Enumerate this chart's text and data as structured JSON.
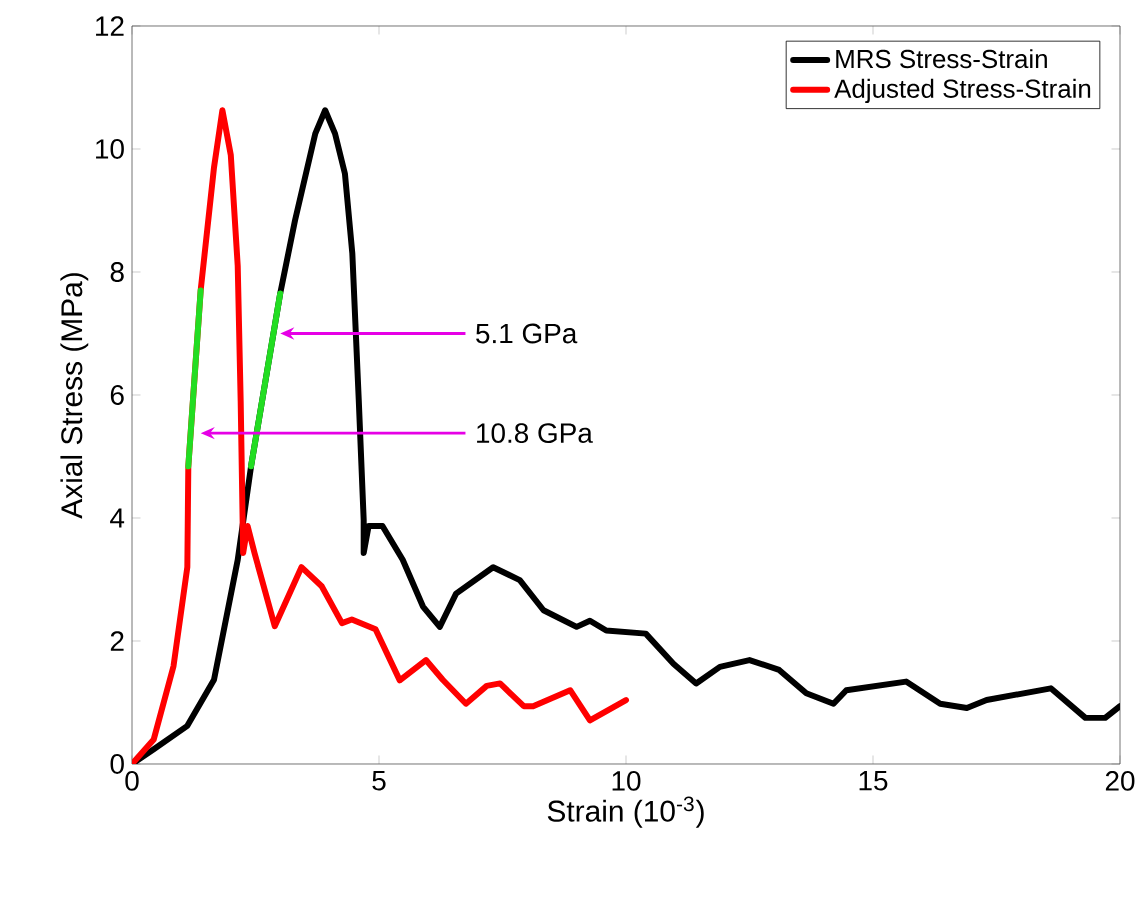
{
  "chart_data": {
    "type": "line",
    "xlabel": "Strain (10$^{-3}$)",
    "ylabel": "Axial Stress (MPa)",
    "xlim": [
      0,
      20
    ],
    "ylim": [
      0,
      12
    ],
    "xticks": [
      0,
      5,
      10,
      15,
      20
    ],
    "yticks": [
      0,
      2,
      4,
      6,
      8,
      10,
      12
    ],
    "grid": false,
    "legend": "top right",
    "line_style": "solid",
    "marker": "none",
    "series": [
      {
        "name": "MRS Stress-Strain",
        "color": "#000000",
        "x": [
          0,
          0.44,
          1.12,
          1.66,
          2.14,
          2.41,
          3.0,
          3.3,
          3.71,
          3.91,
          4.11,
          4.31,
          4.46,
          4.59,
          4.69,
          4.69,
          4.79,
          5.07,
          5.48,
          5.89,
          6.23,
          6.56,
          7.31,
          7.85,
          8.33,
          9.0,
          9.27,
          9.6,
          10.4,
          10.96,
          11.42,
          11.9,
          12.5,
          13.1,
          13.65,
          14.2,
          14.46,
          15.67,
          16.36,
          16.9,
          17.3,
          18.6,
          19.3,
          19.7,
          20.0
        ],
        "values": [
          0,
          0.24,
          0.62,
          1.37,
          3.32,
          4.84,
          7.65,
          8.84,
          10.25,
          10.63,
          10.25,
          9.6,
          8.3,
          5.92,
          3.97,
          3.43,
          3.87,
          3.87,
          3.32,
          2.56,
          2.23,
          2.77,
          3.2,
          2.99,
          2.5,
          2.23,
          2.33,
          2.17,
          2.12,
          1.63,
          1.31,
          1.58,
          1.69,
          1.53,
          1.15,
          0.98,
          1.2,
          1.34,
          0.98,
          0.91,
          1.04,
          1.23,
          0.75,
          0.75,
          0.94
        ]
      },
      {
        "name": "Adjusted Stress-Strain",
        "color": "#ff0000",
        "x": [
          0,
          0.44,
          0.84,
          1.12,
          1.14,
          1.39,
          1.66,
          1.83,
          2.0,
          2.14,
          2.2,
          2.25,
          2.34,
          2.48,
          2.89,
          3.43,
          3.84,
          4.25,
          4.45,
          4.93,
          5.42,
          5.95,
          6.29,
          6.76,
          7.18,
          7.45,
          7.93,
          8.12,
          8.87,
          9.27,
          10.0
        ],
        "values": [
          0,
          0.4,
          1.59,
          3.2,
          4.84,
          7.7,
          9.7,
          10.63,
          9.9,
          8.1,
          5.9,
          3.43,
          3.87,
          3.43,
          2.24,
          3.2,
          2.89,
          2.29,
          2.35,
          2.19,
          1.36,
          1.69,
          1.37,
          0.98,
          1.27,
          1.31,
          0.94,
          0.94,
          1.2,
          0.71,
          1.04
        ]
      },
      {
        "color": "#22dd22",
        "x": [
          1.14,
          1.39
        ],
        "values": [
          4.84,
          7.7
        ]
      },
      {
        "color": "#22dd22",
        "x": [
          2.41,
          3.0
        ],
        "values": [
          4.84,
          7.65
        ]
      }
    ],
    "annotations": [
      {
        "text": "5.1 GPa",
        "x": 3.0,
        "y": 7.0
      },
      {
        "text": "10.8 GPa",
        "x": 1.39,
        "y": 5.38
      }
    ]
  }
}
